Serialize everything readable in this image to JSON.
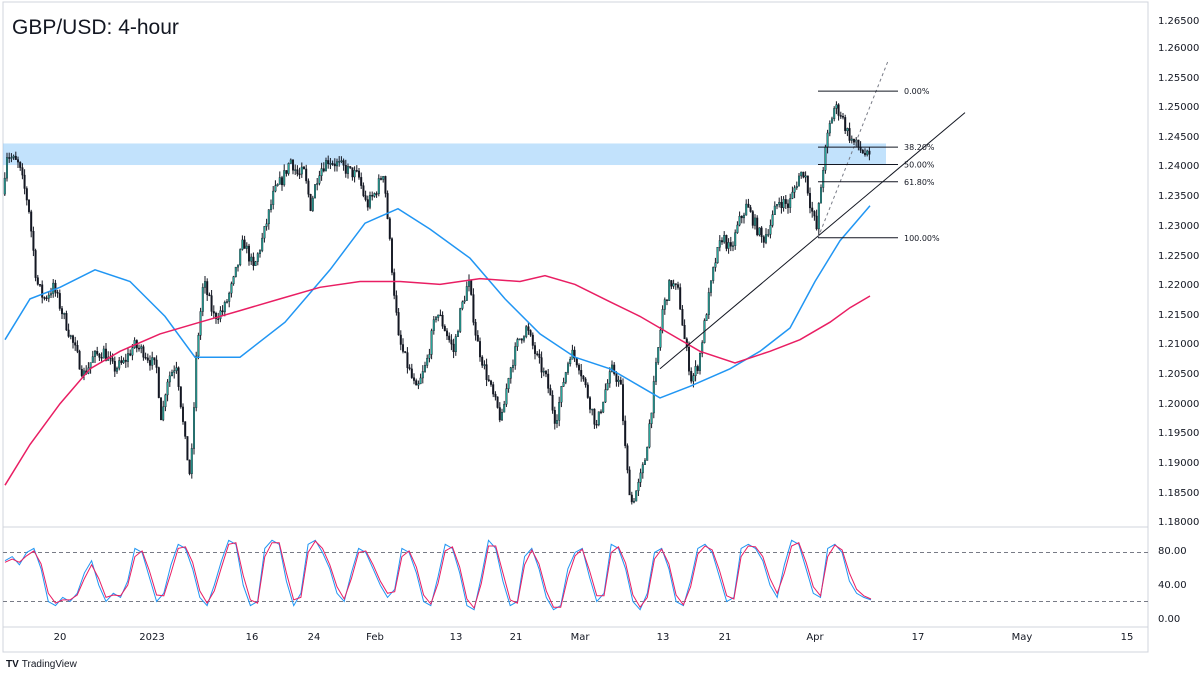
{
  "title": "GBP/USD: 4-hour",
  "brand": "TradingView",
  "brand_logo": "TV",
  "colors": {
    "bull": "#26a69a",
    "bear": "#131722",
    "ma_fast": "#2196f3",
    "ma_slow": "#e91e63",
    "zone": "#90caf9",
    "stoch_k": "#2196f3",
    "stoch_d": "#e91e63"
  },
  "chart_data": [
    {
      "type": "candlestick",
      "title": "GBP/USD: 4-hour",
      "x_ticks": [
        "20",
        "2023",
        "16",
        "24",
        "Feb",
        "13",
        "21",
        "Mar",
        "13",
        "21",
        "Apr",
        "17",
        "May",
        "15"
      ],
      "y_ticks": [
        "1.26500",
        "1.26000",
        "1.25500",
        "1.25000",
        "1.24500",
        "1.24000",
        "1.23500",
        "1.23000",
        "1.22500",
        "1.22000",
        "1.21500",
        "1.21000",
        "1.20500",
        "1.20000",
        "1.19500",
        "1.19000",
        "1.18500",
        "1.18000"
      ],
      "ylim": [
        1.178,
        1.268
      ],
      "price_path": [
        [
          0,
          1.228
        ],
        [
          8,
          1.242
        ],
        [
          20,
          1.24
        ],
        [
          30,
          1.233
        ],
        [
          38,
          1.22
        ],
        [
          45,
          1.217
        ],
        [
          55,
          1.219
        ],
        [
          65,
          1.214
        ],
        [
          75,
          1.209
        ],
        [
          85,
          1.204
        ],
        [
          95,
          1.207
        ],
        [
          105,
          1.208
        ],
        [
          115,
          1.205
        ],
        [
          125,
          1.206
        ],
        [
          135,
          1.209
        ],
        [
          145,
          1.208
        ],
        [
          158,
          1.205
        ],
        [
          163,
          1.196
        ],
        [
          168,
          1.203
        ],
        [
          178,
          1.206
        ],
        [
          186,
          1.193
        ],
        [
          192,
          1.186
        ],
        [
          198,
          1.208
        ],
        [
          205,
          1.22
        ],
        [
          215,
          1.214
        ],
        [
          225,
          1.215
        ],
        [
          235,
          1.22
        ],
        [
          245,
          1.227
        ],
        [
          255,
          1.222
        ],
        [
          265,
          1.228
        ],
        [
          275,
          1.235
        ],
        [
          285,
          1.238
        ],
        [
          292,
          1.241
        ],
        [
          300,
          1.238
        ],
        [
          305,
          1.239
        ],
        [
          312,
          1.233
        ],
        [
          320,
          1.239
        ],
        [
          330,
          1.241
        ],
        [
          340,
          1.24
        ],
        [
          350,
          1.239
        ],
        [
          360,
          1.238
        ],
        [
          368,
          1.233
        ],
        [
          376,
          1.235
        ],
        [
          385,
          1.239
        ],
        [
          392,
          1.225
        ],
        [
          400,
          1.21
        ],
        [
          408,
          1.206
        ],
        [
          418,
          1.201
        ],
        [
          428,
          1.206
        ],
        [
          438,
          1.215
        ],
        [
          446,
          1.212
        ],
        [
          455,
          1.208
        ],
        [
          462,
          1.215
        ],
        [
          470,
          1.22
        ],
        [
          478,
          1.21
        ],
        [
          486,
          1.205
        ],
        [
          495,
          1.2
        ],
        [
          503,
          1.196
        ],
        [
          510,
          1.204
        ],
        [
          520,
          1.21
        ],
        [
          528,
          1.212
        ],
        [
          538,
          1.207
        ],
        [
          548,
          1.203
        ],
        [
          557,
          1.196
        ],
        [
          565,
          1.203
        ],
        [
          572,
          1.208
        ],
        [
          580,
          1.206
        ],
        [
          590,
          1.2
        ],
        [
          598,
          1.195
        ],
        [
          606,
          1.201
        ],
        [
          614,
          1.205
        ],
        [
          622,
          1.202
        ],
        [
          628,
          1.188
        ],
        [
          633,
          1.182
        ],
        [
          640,
          1.185
        ],
        [
          646,
          1.189
        ],
        [
          652,
          1.197
        ],
        [
          658,
          1.206
        ],
        [
          664,
          1.215
        ],
        [
          672,
          1.22
        ],
        [
          680,
          1.218
        ],
        [
          686,
          1.21
        ],
        [
          693,
          1.203
        ],
        [
          700,
          1.206
        ],
        [
          708,
          1.215
        ],
        [
          716,
          1.223
        ],
        [
          724,
          1.228
        ],
        [
          732,
          1.225
        ],
        [
          740,
          1.23
        ],
        [
          748,
          1.233
        ],
        [
          756,
          1.23
        ],
        [
          764,
          1.227
        ],
        [
          772,
          1.23
        ],
        [
          780,
          1.234
        ],
        [
          790,
          1.233
        ],
        [
          800,
          1.238
        ],
        [
          806,
          1.239
        ],
        [
          812,
          1.233
        ],
        [
          818,
          1.229
        ],
        [
          824,
          1.239
        ],
        [
          830,
          1.246
        ],
        [
          836,
          1.25
        ],
        [
          842,
          1.249
        ],
        [
          848,
          1.246
        ],
        [
          854,
          1.244
        ],
        [
          860,
          1.243
        ],
        [
          866,
          1.242
        ],
        [
          870,
          1.241
        ]
      ],
      "series": [
        {
          "name": "",
          "kind": "moving-average",
          "color": "#2196f3",
          "points": [
            [
              5,
              1.21
            ],
            [
              30,
              1.217
            ],
            [
              60,
              1.219
            ],
            [
              95,
              1.222
            ],
            [
              130,
              1.22
            ],
            [
              165,
              1.214
            ],
            [
              195,
              1.207
            ],
            [
              240,
              1.207
            ],
            [
              285,
              1.213
            ],
            [
              330,
              1.222
            ],
            [
              365,
              1.23
            ],
            [
              398,
              1.2325
            ],
            [
              430,
              1.229
            ],
            [
              470,
              1.224
            ],
            [
              505,
              1.217
            ],
            [
              540,
              1.211
            ],
            [
              575,
              1.207
            ],
            [
              610,
              1.205
            ],
            [
              640,
              1.202
            ],
            [
              660,
              1.2
            ],
            [
              690,
              1.202
            ],
            [
              730,
              1.205
            ],
            [
              760,
              1.208
            ],
            [
              790,
              1.212
            ],
            [
              815,
              1.22
            ],
            [
              840,
              1.227
            ],
            [
              870,
              1.233
            ]
          ]
        },
        {
          "name": "",
          "kind": "moving-average",
          "color": "#e91e63",
          "points": [
            [
              5,
              1.185
            ],
            [
              30,
              1.192
            ],
            [
              60,
              1.199
            ],
            [
              90,
              1.205
            ],
            [
              120,
              1.208
            ],
            [
              160,
              1.211
            ],
            [
              200,
              1.213
            ],
            [
              240,
              1.215
            ],
            [
              280,
              1.217
            ],
            [
              320,
              1.219
            ],
            [
              360,
              1.22
            ],
            [
              400,
              1.22
            ],
            [
              440,
              1.2195
            ],
            [
              480,
              1.2205
            ],
            [
              520,
              1.22
            ],
            [
              545,
              1.221
            ],
            [
              575,
              1.2195
            ],
            [
              610,
              1.2165
            ],
            [
              640,
              1.214
            ],
            [
              670,
              1.211
            ],
            [
              700,
              1.208
            ],
            [
              735,
              1.206
            ],
            [
              770,
              1.208
            ],
            [
              800,
              1.21
            ],
            [
              830,
              1.213
            ],
            [
              850,
              1.2155
            ],
            [
              870,
              1.2175
            ]
          ]
        }
      ],
      "resistance_zone": [
        1.24,
        1.2437
      ],
      "trendline": [
        [
          660,
          1.205
        ],
        [
          965,
          1.249
        ]
      ],
      "fibonacci": {
        "high": 1.2527,
        "low": 1.2275,
        "levels": [
          {
            "ratio": 0.0,
            "label": "0.00%"
          },
          {
            "ratio": 0.382,
            "label": "38.20%"
          },
          {
            "ratio": 0.5,
            "label": "50.00%"
          },
          {
            "ratio": 0.618,
            "label": "61.80%"
          },
          {
            "ratio": 1.0,
            "label": "100.00%"
          }
        ]
      }
    },
    {
      "type": "line",
      "y_ticks": [
        "80.00",
        "40.00",
        "0.00"
      ],
      "ylim": [
        -10,
        110
      ],
      "reference_levels": [
        80,
        20
      ],
      "series": [
        {
          "name": "",
          "color": "#2196f3",
          "values": [
            70,
            75,
            65,
            80,
            85,
            60,
            20,
            15,
            25,
            20,
            30,
            55,
            70,
            40,
            20,
            30,
            25,
            45,
            85,
            80,
            50,
            20,
            30,
            65,
            90,
            85,
            60,
            25,
            15,
            40,
            70,
            95,
            90,
            40,
            15,
            20,
            85,
            95,
            90,
            45,
            15,
            30,
            90,
            95,
            80,
            60,
            30,
            20,
            55,
            85,
            80,
            60,
            40,
            25,
            35,
            85,
            80,
            55,
            20,
            15,
            50,
            90,
            85,
            55,
            15,
            10,
            50,
            95,
            85,
            45,
            15,
            20,
            75,
            85,
            60,
            25,
            10,
            15,
            60,
            80,
            85,
            50,
            20,
            30,
            90,
            85,
            60,
            20,
            10,
            30,
            80,
            85,
            60,
            20,
            15,
            45,
            85,
            90,
            80,
            50,
            20,
            25,
            85,
            90,
            85,
            70,
            40,
            25,
            65,
            95,
            90,
            60,
            30,
            25,
            85,
            90,
            80,
            45,
            30,
            25,
            22
          ]
        },
        {
          "name": "",
          "color": "#e91e63",
          "values": [
            68,
            72,
            68,
            76,
            82,
            66,
            30,
            18,
            22,
            22,
            28,
            48,
            65,
            48,
            25,
            28,
            27,
            40,
            75,
            82,
            58,
            28,
            27,
            55,
            85,
            87,
            68,
            33,
            18,
            33,
            62,
            90,
            92,
            52,
            22,
            18,
            75,
            92,
            92,
            55,
            22,
            25,
            80,
            94,
            85,
            65,
            38,
            23,
            48,
            80,
            82,
            65,
            45,
            30,
            32,
            75,
            82,
            62,
            28,
            17,
            42,
            82,
            87,
            62,
            23,
            12,
            42,
            88,
            88,
            55,
            22,
            18,
            65,
            83,
            66,
            33,
            13,
            13,
            50,
            76,
            84,
            58,
            27,
            27,
            80,
            87,
            67,
            28,
            13,
            25,
            72,
            84,
            66,
            28,
            16,
            38,
            78,
            88,
            83,
            58,
            27,
            23,
            75,
            88,
            87,
            75,
            48,
            30,
            55,
            88,
            92,
            68,
            38,
            27,
            75,
            89,
            83,
            55,
            35,
            27,
            23
          ]
        }
      ]
    }
  ]
}
